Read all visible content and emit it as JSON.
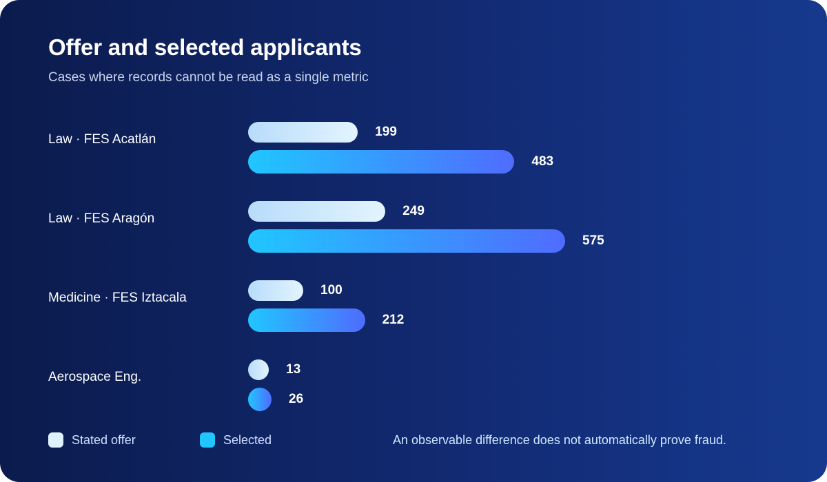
{
  "chart_data": {
    "type": "bar",
    "orientation": "horizontal",
    "title": "Offer and selected applicants",
    "subtitle": "Cases where records cannot be read as a single metric",
    "categories": [
      "Law · FES Acatlán",
      "Law · FES Aragón",
      "Medicine · FES Iztacala",
      "Aerospace Eng."
    ],
    "series": [
      {
        "name": "Stated offer",
        "values": [
          199,
          249,
          100,
          13
        ],
        "color": "#dff3ff"
      },
      {
        "name": "Selected",
        "values": [
          483,
          575,
          212,
          26
        ],
        "color": "#22c6ff"
      }
    ],
    "xlim": [
      0,
      575
    ],
    "grid": false,
    "legend_position": "bottom-left",
    "note": "An observable difference does not automatically prove fraud."
  },
  "colors": {
    "background_start": "#0b1b4d",
    "background_end": "#16398e",
    "offer_gradient": [
      "#b8dcfb",
      "#e3f4ff"
    ],
    "selected_gradient": [
      "#20c6ff",
      "#4f6cff"
    ]
  }
}
